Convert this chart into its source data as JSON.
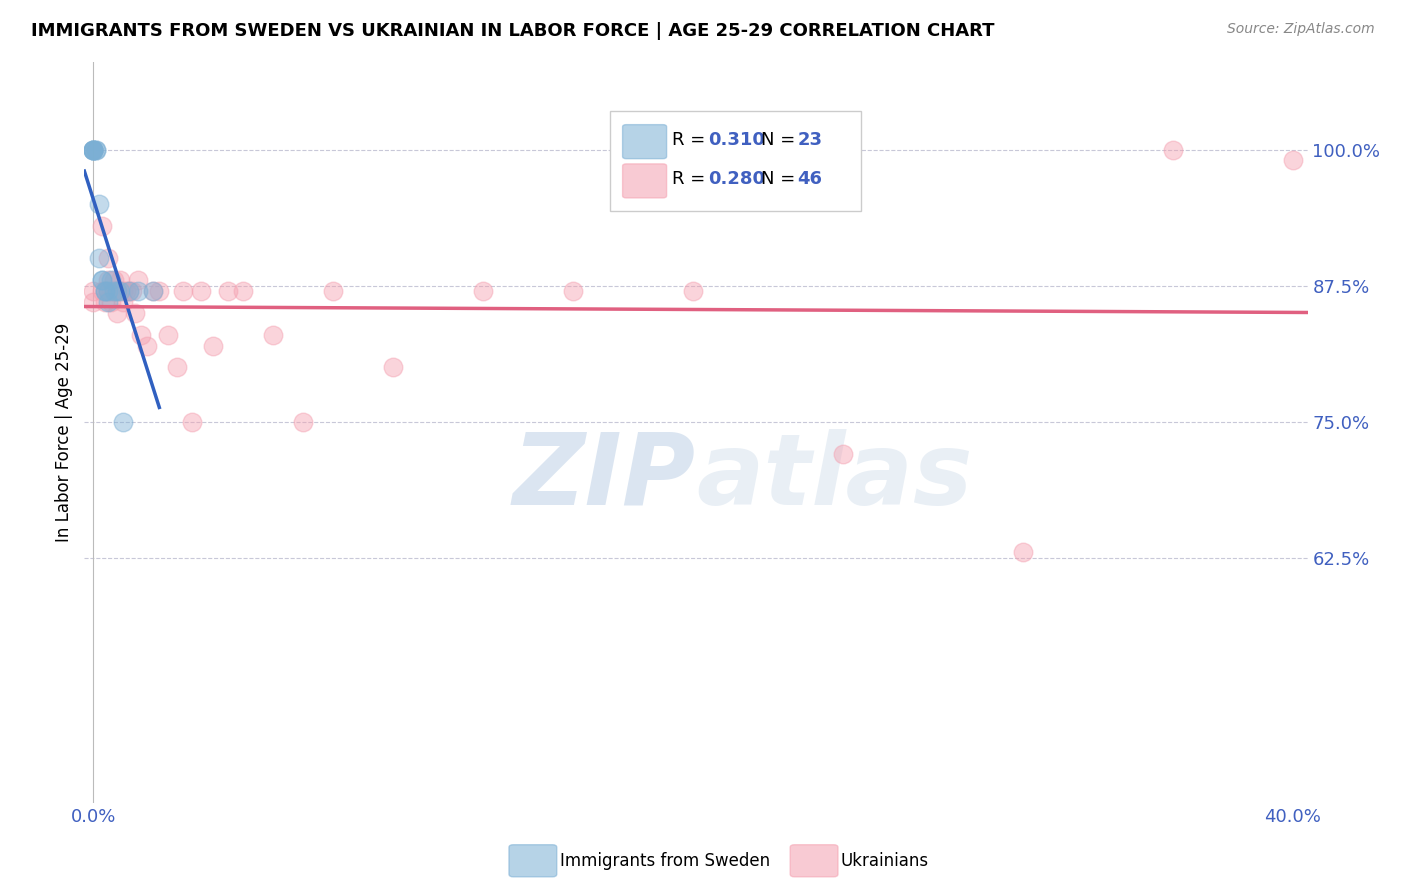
{
  "title": "IMMIGRANTS FROM SWEDEN VS UKRAINIAN IN LABOR FORCE | AGE 25-29 CORRELATION CHART",
  "source": "Source: ZipAtlas.com",
  "ylabel": "In Labor Force | Age 25-29",
  "ytick_labels": [
    "100.0%",
    "87.5%",
    "75.0%",
    "62.5%"
  ],
  "ytick_values": [
    1.0,
    0.875,
    0.75,
    0.625
  ],
  "ylim": [
    0.4,
    1.08
  ],
  "xlim": [
    -0.003,
    0.405
  ],
  "legend_r_sweden": "R = 0.310",
  "legend_n_sweden": "N = 23",
  "legend_r_ukraine": "R = 0.280",
  "legend_n_ukraine": "N = 46",
  "watermark": "ZIPatlas",
  "sweden_color": "#7bafd4",
  "ukraine_color": "#f4a0b0",
  "sweden_line_color": "#3060c0",
  "ukraine_line_color": "#e06080",
  "sweden_x": [
    0.0,
    0.0,
    0.0,
    0.0,
    0.0,
    0.001,
    0.001,
    0.002,
    0.002,
    0.003,
    0.003,
    0.004,
    0.004,
    0.005,
    0.005,
    0.006,
    0.007,
    0.008,
    0.009,
    0.01,
    0.012,
    0.015,
    0.02
  ],
  "sweden_y": [
    1.0,
    1.0,
    1.0,
    1.0,
    1.0,
    1.0,
    1.0,
    0.95,
    0.9,
    0.88,
    0.88,
    0.87,
    0.87,
    0.87,
    0.86,
    0.88,
    0.87,
    0.87,
    0.87,
    0.75,
    0.87,
    0.87,
    0.87
  ],
  "ukraine_x": [
    0.0,
    0.0,
    0.003,
    0.003,
    0.004,
    0.004,
    0.005,
    0.005,
    0.005,
    0.006,
    0.006,
    0.007,
    0.007,
    0.008,
    0.008,
    0.009,
    0.01,
    0.01,
    0.011,
    0.012,
    0.013,
    0.014,
    0.015,
    0.016,
    0.018,
    0.02,
    0.022,
    0.025,
    0.028,
    0.03,
    0.033,
    0.036,
    0.04,
    0.045,
    0.05,
    0.06,
    0.07,
    0.08,
    0.1,
    0.13,
    0.16,
    0.2,
    0.25,
    0.31,
    0.36,
    0.4
  ],
  "ukraine_y": [
    0.87,
    0.86,
    0.93,
    0.87,
    0.87,
    0.86,
    0.9,
    0.88,
    0.87,
    0.87,
    0.86,
    0.88,
    0.87,
    0.87,
    0.85,
    0.88,
    0.87,
    0.86,
    0.87,
    0.87,
    0.87,
    0.85,
    0.88,
    0.83,
    0.82,
    0.87,
    0.87,
    0.83,
    0.8,
    0.87,
    0.75,
    0.87,
    0.82,
    0.87,
    0.87,
    0.83,
    0.75,
    0.87,
    0.8,
    0.87,
    0.87,
    0.87,
    0.72,
    0.63,
    1.0,
    0.99
  ],
  "title_fontsize": 13,
  "tick_label_color": "#4060c0",
  "grid_color": "#c8c8d8",
  "background_color": "#ffffff"
}
